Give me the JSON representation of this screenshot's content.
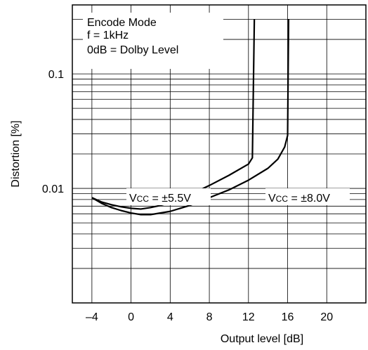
{
  "chart_data": {
    "type": "line",
    "xlabel": "Output level [dB]",
    "ylabel": "Distortion [%]",
    "xlim": [
      -6,
      24
    ],
    "ylim": [
      0.001,
      0.4
    ],
    "y_scale": "log",
    "grid": true,
    "x_ticks": [
      -4,
      0,
      4,
      8,
      12,
      16,
      20
    ],
    "x_tick_labels": [
      "–4",
      "0",
      "4",
      "8",
      "12",
      "16",
      "20"
    ],
    "y_ticks": [
      0.01,
      0.1
    ],
    "y_tick_labels": [
      "0.01",
      "0.1"
    ],
    "annotations": {
      "conditions": [
        "Encode Mode",
        "f = 1kHz",
        "0dB = Dolby Level"
      ]
    },
    "series": [
      {
        "name": "Vcc = ±5.5V",
        "label_main": "V",
        "label_sub": "CC",
        "label_rest": " = ±5.5V",
        "x": [
          -4,
          -3,
          -2,
          -1,
          0,
          1,
          2,
          3,
          4,
          6,
          8,
          10,
          12,
          12.4,
          12.6
        ],
        "y": [
          0.0083,
          0.0076,
          0.0072,
          0.0069,
          0.0067,
          0.0066,
          0.0068,
          0.0071,
          0.0075,
          0.0088,
          0.0106,
          0.013,
          0.0163,
          0.0185,
          0.3
        ]
      },
      {
        "name": "Vcc = ±8.0V",
        "label_main": "V",
        "label_sub": "CC",
        "label_rest": " = ±8.0V",
        "x": [
          -4,
          -3,
          -2,
          -1,
          0,
          1,
          2,
          4,
          6,
          8,
          10,
          12,
          14,
          15,
          15.7,
          16,
          16.1
        ],
        "y": [
          0.0083,
          0.0074,
          0.0068,
          0.0064,
          0.0061,
          0.0059,
          0.0059,
          0.0063,
          0.0071,
          0.0083,
          0.0097,
          0.0118,
          0.015,
          0.018,
          0.023,
          0.029,
          0.3
        ]
      }
    ]
  }
}
